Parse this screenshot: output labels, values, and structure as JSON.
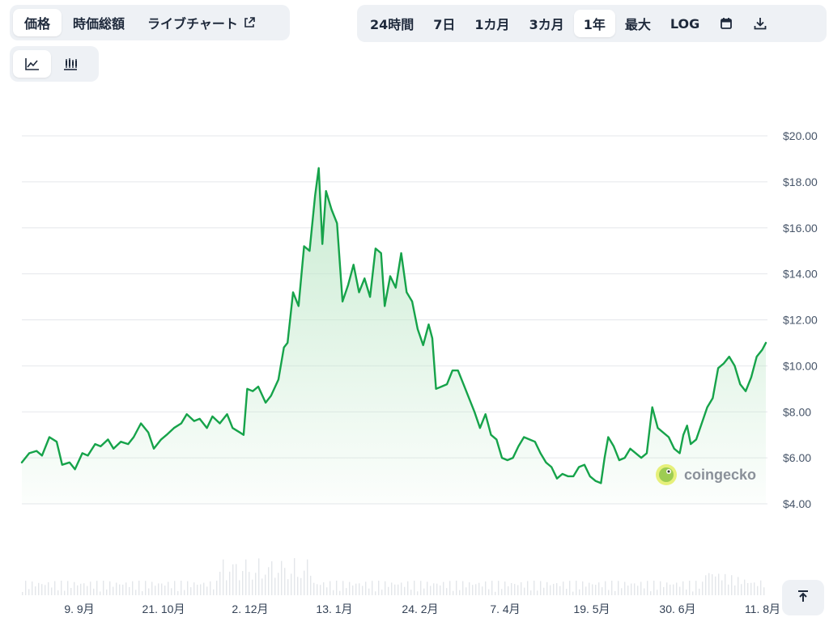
{
  "tabs_left": [
    {
      "label": "価格",
      "active": true
    },
    {
      "label": "時価総額",
      "active": false
    },
    {
      "label": "ライブチャート",
      "active": false,
      "icon": "external-link-icon"
    }
  ],
  "tabs_right": [
    {
      "label": "24時間",
      "active": false
    },
    {
      "label": "7日",
      "active": false
    },
    {
      "label": "1カ月",
      "active": false
    },
    {
      "label": "3カ月",
      "active": false
    },
    {
      "label": "1年",
      "active": true
    },
    {
      "label": "最大",
      "active": false
    },
    {
      "label": "LOG",
      "active": false
    }
  ],
  "toolbar_icons": [
    "calendar-icon",
    "download-icon"
  ],
  "view_toggle": [
    {
      "icon": "line-chart-icon",
      "active": true
    },
    {
      "icon": "candlestick-chart-icon",
      "active": false
    }
  ],
  "watermark": "coingecko",
  "colors": {
    "line": "#16a34a",
    "area_top": "#bfe8c9",
    "grid": "#e5e7eb",
    "volume": "#e3e6ea",
    "tab_bg": "#eef1f5"
  },
  "chart_data": {
    "type": "area",
    "title": "",
    "xlabel": "",
    "ylabel": "",
    "currency": "$",
    "ylim": [
      4,
      20
    ],
    "yticks": [
      "$20.00",
      "$18.00",
      "$16.00",
      "$14.00",
      "$12.00",
      "$10.00",
      "$8.00",
      "$6.00",
      "$4.00"
    ],
    "xticks": [
      "9. 9月",
      "21. 10月",
      "2. 12月",
      "13. 1月",
      "24. 2月",
      "7. 4月",
      "19. 5月",
      "30. 6月",
      "11. 8月"
    ],
    "grid": true,
    "x_start_day": 0,
    "x_end_day": 365,
    "series": [
      {
        "values": [
          [
            0,
            5.8
          ],
          [
            4,
            6.2
          ],
          [
            8,
            6.3
          ],
          [
            11,
            6.1
          ],
          [
            15,
            6.9
          ],
          [
            19,
            6.7
          ],
          [
            22,
            5.7
          ],
          [
            26,
            5.8
          ],
          [
            29,
            5.5
          ],
          [
            33,
            6.2
          ],
          [
            36,
            6.1
          ],
          [
            40,
            6.6
          ],
          [
            43,
            6.5
          ],
          [
            47,
            6.8
          ],
          [
            50,
            6.4
          ],
          [
            54,
            6.7
          ],
          [
            58,
            6.6
          ],
          [
            61,
            6.9
          ],
          [
            65,
            7.5
          ],
          [
            69,
            7.1
          ],
          [
            72,
            6.4
          ],
          [
            76,
            6.8
          ],
          [
            79,
            7.0
          ],
          [
            83,
            7.3
          ],
          [
            87,
            7.5
          ],
          [
            90,
            7.9
          ],
          [
            94,
            7.6
          ],
          [
            97,
            7.7
          ],
          [
            101,
            7.3
          ],
          [
            104,
            7.8
          ],
          [
            108,
            7.5
          ],
          [
            112,
            7.9
          ],
          [
            115,
            7.3
          ],
          [
            119,
            7.1
          ],
          [
            121,
            7.0
          ],
          [
            123,
            9.0
          ],
          [
            126,
            8.9
          ],
          [
            129,
            9.1
          ],
          [
            133,
            8.4
          ],
          [
            136,
            8.7
          ],
          [
            140,
            9.4
          ],
          [
            143,
            10.8
          ],
          [
            145,
            11.0
          ],
          [
            148,
            13.2
          ],
          [
            151,
            12.6
          ],
          [
            154,
            15.2
          ],
          [
            157,
            15.0
          ],
          [
            160,
            17.4
          ],
          [
            162,
            18.6
          ],
          [
            164,
            15.3
          ],
          [
            166,
            17.6
          ],
          [
            169,
            16.8
          ],
          [
            172,
            16.2
          ],
          [
            175,
            12.8
          ],
          [
            178,
            13.5
          ],
          [
            181,
            14.4
          ],
          [
            184,
            13.2
          ],
          [
            187,
            13.8
          ],
          [
            190,
            13.0
          ],
          [
            193,
            15.1
          ],
          [
            196,
            14.9
          ],
          [
            198,
            12.6
          ],
          [
            201,
            13.9
          ],
          [
            204,
            13.4
          ],
          [
            207,
            14.9
          ],
          [
            210,
            13.2
          ],
          [
            213,
            12.8
          ],
          [
            216,
            11.6
          ],
          [
            219,
            10.9
          ],
          [
            222,
            11.8
          ],
          [
            224,
            11.2
          ],
          [
            226,
            9.0
          ],
          [
            229,
            9.1
          ],
          [
            232,
            9.2
          ],
          [
            235,
            9.8
          ],
          [
            238,
            9.8
          ],
          [
            241,
            9.2
          ],
          [
            244,
            8.6
          ],
          [
            247,
            8.0
          ],
          [
            250,
            7.3
          ],
          [
            253,
            7.9
          ],
          [
            256,
            7.0
          ],
          [
            259,
            6.8
          ],
          [
            262,
            6.0
          ],
          [
            265,
            5.9
          ],
          [
            268,
            6.0
          ],
          [
            271,
            6.5
          ],
          [
            274,
            6.9
          ],
          [
            277,
            6.8
          ],
          [
            280,
            6.7
          ],
          [
            283,
            6.2
          ],
          [
            286,
            5.8
          ],
          [
            289,
            5.6
          ],
          [
            292,
            5.1
          ],
          [
            295,
            5.3
          ],
          [
            298,
            5.2
          ],
          [
            301,
            5.2
          ],
          [
            304,
            5.6
          ],
          [
            307,
            5.7
          ],
          [
            310,
            5.2
          ],
          [
            313,
            5.0
          ],
          [
            316,
            4.9
          ],
          [
            318,
            6.0
          ],
          [
            320,
            6.9
          ],
          [
            323,
            6.5
          ],
          [
            326,
            5.9
          ],
          [
            329,
            6.0
          ],
          [
            332,
            6.4
          ],
          [
            335,
            6.2
          ],
          [
            338,
            6.0
          ],
          [
            341,
            6.2
          ],
          [
            344,
            8.2
          ],
          [
            347,
            7.3
          ],
          [
            350,
            7.1
          ],
          [
            353,
            6.9
          ],
          [
            356,
            6.4
          ],
          [
            359,
            6.2
          ],
          [
            361,
            7.0
          ],
          [
            363,
            7.4
          ],
          [
            365,
            6.6
          ],
          [
            368,
            6.8
          ],
          [
            371,
            7.5
          ],
          [
            374,
            8.2
          ],
          [
            377,
            8.6
          ],
          [
            380,
            9.9
          ],
          [
            383,
            10.1
          ],
          [
            386,
            10.4
          ],
          [
            389,
            10.0
          ],
          [
            392,
            9.2
          ],
          [
            395,
            8.9
          ],
          [
            398,
            9.5
          ],
          [
            401,
            10.4
          ],
          [
            404,
            10.7
          ],
          [
            406,
            11.0
          ]
        ]
      }
    ],
    "x_day_end_override": 406
  }
}
